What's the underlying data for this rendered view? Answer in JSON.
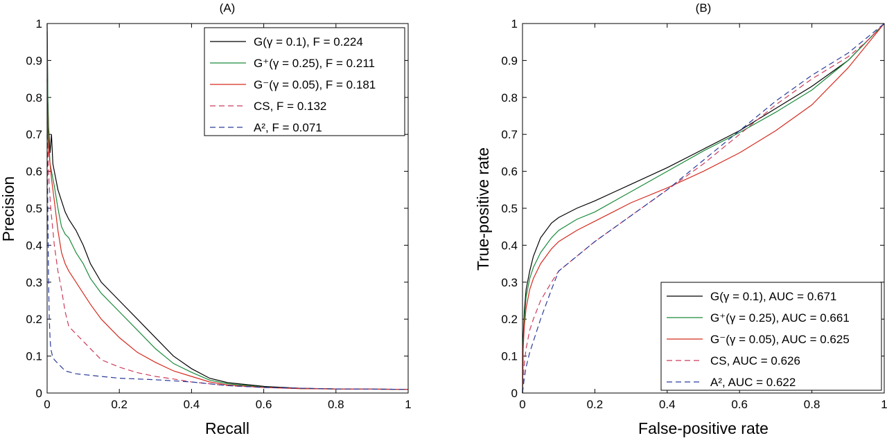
{
  "chart_data": [
    {
      "panel": "(A)",
      "type": "line",
      "xlabel": "Recall",
      "ylabel": "Precision",
      "xlim": [
        0,
        1
      ],
      "ylim": [
        0,
        1
      ],
      "xticks": [
        "0",
        "0.2",
        "0.4",
        "0.6",
        "0.8",
        "1"
      ],
      "yticks": [
        "0",
        "0.1",
        "0.2",
        "0.3",
        "0.4",
        "0.5",
        "0.6",
        "0.7",
        "0.8",
        "0.9",
        "1"
      ],
      "legend_position": "top-right",
      "series": [
        {
          "legend": "G(γ = 0.1), F = 0.224",
          "color": "#000000",
          "dash": "solid",
          "points": [
            [
              0,
              1.0
            ],
            [
              0.002,
              0.8
            ],
            [
              0.004,
              0.72
            ],
            [
              0.008,
              0.65
            ],
            [
              0.012,
              0.7
            ],
            [
              0.016,
              0.62
            ],
            [
              0.02,
              0.6
            ],
            [
              0.03,
              0.55
            ],
            [
              0.04,
              0.52
            ],
            [
              0.05,
              0.49
            ],
            [
              0.06,
              0.47
            ],
            [
              0.08,
              0.44
            ],
            [
              0.1,
              0.4
            ],
            [
              0.12,
              0.35
            ],
            [
              0.15,
              0.3
            ],
            [
              0.2,
              0.25
            ],
            [
              0.25,
              0.2
            ],
            [
              0.3,
              0.15
            ],
            [
              0.35,
              0.1
            ],
            [
              0.4,
              0.066
            ],
            [
              0.45,
              0.04
            ],
            [
              0.5,
              0.028
            ],
            [
              0.6,
              0.018
            ],
            [
              0.7,
              0.013
            ],
            [
              0.8,
              0.011
            ],
            [
              1.0,
              0.01
            ]
          ]
        },
        {
          "legend": "G⁺(γ = 0.25), F = 0.211",
          "color": "#1a8a3a",
          "dash": "solid",
          "points": [
            [
              0,
              0.98
            ],
            [
              0.002,
              0.78
            ],
            [
              0.004,
              0.7
            ],
            [
              0.008,
              0.62
            ],
            [
              0.012,
              0.6
            ],
            [
              0.02,
              0.56
            ],
            [
              0.03,
              0.5
            ],
            [
              0.04,
              0.45
            ],
            [
              0.05,
              0.43
            ],
            [
              0.06,
              0.42
            ],
            [
              0.08,
              0.38
            ],
            [
              0.1,
              0.35
            ],
            [
              0.12,
              0.31
            ],
            [
              0.15,
              0.27
            ],
            [
              0.2,
              0.22
            ],
            [
              0.25,
              0.17
            ],
            [
              0.3,
              0.12
            ],
            [
              0.35,
              0.08
            ],
            [
              0.4,
              0.056
            ],
            [
              0.45,
              0.035
            ],
            [
              0.5,
              0.025
            ],
            [
              0.6,
              0.016
            ],
            [
              0.7,
              0.012
            ],
            [
              0.8,
              0.011
            ],
            [
              1.0,
              0.01
            ]
          ]
        },
        {
          "legend": "G⁻(γ = 0.05), F = 0.181",
          "color": "#d42a1e",
          "dash": "solid",
          "points": [
            [
              0,
              0.85
            ],
            [
              0.002,
              0.7
            ],
            [
              0.004,
              0.66
            ],
            [
              0.008,
              0.62
            ],
            [
              0.012,
              0.58
            ],
            [
              0.02,
              0.52
            ],
            [
              0.03,
              0.44
            ],
            [
              0.04,
              0.38
            ],
            [
              0.05,
              0.35
            ],
            [
              0.06,
              0.33
            ],
            [
              0.08,
              0.3
            ],
            [
              0.1,
              0.27
            ],
            [
              0.12,
              0.24
            ],
            [
              0.15,
              0.2
            ],
            [
              0.2,
              0.15
            ],
            [
              0.25,
              0.11
            ],
            [
              0.3,
              0.083
            ],
            [
              0.35,
              0.06
            ],
            [
              0.4,
              0.045
            ],
            [
              0.45,
              0.03
            ],
            [
              0.5,
              0.022
            ],
            [
              0.6,
              0.015
            ],
            [
              0.7,
              0.012
            ],
            [
              0.8,
              0.011
            ],
            [
              1.0,
              0.01
            ]
          ]
        },
        {
          "legend": "CS, F = 0.132",
          "color": "#cc3a5a",
          "dash": "dashed",
          "points": [
            [
              0,
              0.8
            ],
            [
              0.003,
              0.62
            ],
            [
              0.006,
              0.56
            ],
            [
              0.01,
              0.5
            ],
            [
              0.015,
              0.45
            ],
            [
              0.02,
              0.4
            ],
            [
              0.03,
              0.33
            ],
            [
              0.04,
              0.28
            ],
            [
              0.05,
              0.22
            ],
            [
              0.06,
              0.18
            ],
            [
              0.08,
              0.16
            ],
            [
              0.1,
              0.14
            ],
            [
              0.12,
              0.12
            ],
            [
              0.15,
              0.09
            ],
            [
              0.2,
              0.07
            ],
            [
              0.25,
              0.055
            ],
            [
              0.3,
              0.045
            ],
            [
              0.35,
              0.038
            ],
            [
              0.4,
              0.03
            ],
            [
              0.5,
              0.02
            ],
            [
              0.6,
              0.015
            ],
            [
              0.8,
              0.011
            ],
            [
              1.0,
              0.01
            ]
          ]
        },
        {
          "legend": "A², F = 0.071",
          "color": "#2a3a9a",
          "dash": "dashed",
          "points": [
            [
              0,
              0.7
            ],
            [
              0.002,
              0.5
            ],
            [
              0.004,
              0.3
            ],
            [
              0.006,
              0.2
            ],
            [
              0.008,
              0.15
            ],
            [
              0.01,
              0.12
            ],
            [
              0.015,
              0.1
            ],
            [
              0.02,
              0.09
            ],
            [
              0.03,
              0.08
            ],
            [
              0.04,
              0.07
            ],
            [
              0.05,
              0.06
            ],
            [
              0.08,
              0.052
            ],
            [
              0.1,
              0.05
            ],
            [
              0.15,
              0.045
            ],
            [
              0.2,
              0.04
            ],
            [
              0.3,
              0.036
            ],
            [
              0.4,
              0.03
            ],
            [
              0.5,
              0.02
            ],
            [
              0.6,
              0.015
            ],
            [
              0.8,
              0.011
            ],
            [
              1.0,
              0.01
            ]
          ]
        }
      ]
    },
    {
      "panel": "(B)",
      "type": "line",
      "xlabel": "False-positive rate",
      "ylabel": "True-positive rate",
      "xlim": [
        0,
        1
      ],
      "ylim": [
        0,
        1
      ],
      "xticks": [
        "0",
        "0.2",
        "0.4",
        "0.6",
        "0.8",
        "1"
      ],
      "yticks": [
        "0",
        "0.1",
        "0.2",
        "0.3",
        "0.4",
        "0.5",
        "0.6",
        "0.7",
        "0.8",
        "0.9",
        "1"
      ],
      "legend_position": "bottom-right",
      "series": [
        {
          "legend": "G(γ = 0.1), AUC = 0.671",
          "color": "#000000",
          "dash": "solid",
          "points": [
            [
              0,
              0
            ],
            [
              0.002,
              0.15
            ],
            [
              0.005,
              0.22
            ],
            [
              0.01,
              0.28
            ],
            [
              0.02,
              0.33
            ],
            [
              0.03,
              0.37
            ],
            [
              0.05,
              0.42
            ],
            [
              0.08,
              0.46
            ],
            [
              0.1,
              0.475
            ],
            [
              0.15,
              0.5
            ],
            [
              0.2,
              0.52
            ],
            [
              0.3,
              0.565
            ],
            [
              0.4,
              0.61
            ],
            [
              0.5,
              0.66
            ],
            [
              0.6,
              0.71
            ],
            [
              0.7,
              0.77
            ],
            [
              0.8,
              0.83
            ],
            [
              0.9,
              0.9
            ],
            [
              0.95,
              0.95
            ],
            [
              1.0,
              1.0
            ]
          ]
        },
        {
          "legend": "G⁺(γ = 0.25), AUC = 0.661",
          "color": "#1a8a3a",
          "dash": "solid",
          "points": [
            [
              0,
              0
            ],
            [
              0.002,
              0.13
            ],
            [
              0.005,
              0.2
            ],
            [
              0.01,
              0.26
            ],
            [
              0.02,
              0.31
            ],
            [
              0.03,
              0.34
            ],
            [
              0.05,
              0.38
            ],
            [
              0.08,
              0.42
            ],
            [
              0.1,
              0.44
            ],
            [
              0.15,
              0.47
            ],
            [
              0.2,
              0.49
            ],
            [
              0.3,
              0.545
            ],
            [
              0.4,
              0.6
            ],
            [
              0.5,
              0.655
            ],
            [
              0.6,
              0.705
            ],
            [
              0.7,
              0.76
            ],
            [
              0.8,
              0.82
            ],
            [
              0.9,
              0.9
            ],
            [
              0.95,
              0.95
            ],
            [
              1.0,
              1.0
            ]
          ]
        },
        {
          "legend": "G⁻(γ = 0.05), AUC = 0.625",
          "color": "#d42a1e",
          "dash": "solid",
          "points": [
            [
              0,
              0
            ],
            [
              0.002,
              0.12
            ],
            [
              0.005,
              0.18
            ],
            [
              0.01,
              0.23
            ],
            [
              0.02,
              0.28
            ],
            [
              0.03,
              0.31
            ],
            [
              0.05,
              0.35
            ],
            [
              0.08,
              0.39
            ],
            [
              0.1,
              0.41
            ],
            [
              0.15,
              0.44
            ],
            [
              0.2,
              0.465
            ],
            [
              0.3,
              0.515
            ],
            [
              0.4,
              0.555
            ],
            [
              0.5,
              0.6
            ],
            [
              0.6,
              0.65
            ],
            [
              0.7,
              0.71
            ],
            [
              0.8,
              0.78
            ],
            [
              0.9,
              0.88
            ],
            [
              0.95,
              0.94
            ],
            [
              1.0,
              1.0
            ]
          ]
        },
        {
          "legend": "CS, AUC = 0.626",
          "color": "#cc3a5a",
          "dash": "dashed",
          "points": [
            [
              0,
              0
            ],
            [
              0.005,
              0.08
            ],
            [
              0.01,
              0.12
            ],
            [
              0.02,
              0.17
            ],
            [
              0.03,
              0.2
            ],
            [
              0.05,
              0.25
            ],
            [
              0.08,
              0.3
            ],
            [
              0.1,
              0.33
            ],
            [
              0.15,
              0.37
            ],
            [
              0.2,
              0.41
            ],
            [
              0.3,
              0.48
            ],
            [
              0.4,
              0.55
            ],
            [
              0.5,
              0.62
            ],
            [
              0.6,
              0.7
            ],
            [
              0.7,
              0.78
            ],
            [
              0.8,
              0.85
            ],
            [
              0.9,
              0.91
            ],
            [
              0.95,
              0.95
            ],
            [
              1.0,
              1.0
            ]
          ]
        },
        {
          "legend": "A², AUC = 0.622",
          "color": "#2a3a9a",
          "dash": "dashed",
          "points": [
            [
              0,
              0
            ],
            [
              0.005,
              0.04
            ],
            [
              0.01,
              0.07
            ],
            [
              0.02,
              0.11
            ],
            [
              0.03,
              0.14
            ],
            [
              0.05,
              0.2
            ],
            [
              0.08,
              0.28
            ],
            [
              0.1,
              0.33
            ],
            [
              0.15,
              0.37
            ],
            [
              0.2,
              0.41
            ],
            [
              0.3,
              0.48
            ],
            [
              0.4,
              0.55
            ],
            [
              0.5,
              0.63
            ],
            [
              0.6,
              0.71
            ],
            [
              0.7,
              0.79
            ],
            [
              0.8,
              0.86
            ],
            [
              0.9,
              0.92
            ],
            [
              0.95,
              0.96
            ],
            [
              1.0,
              1.0
            ]
          ]
        }
      ]
    }
  ]
}
